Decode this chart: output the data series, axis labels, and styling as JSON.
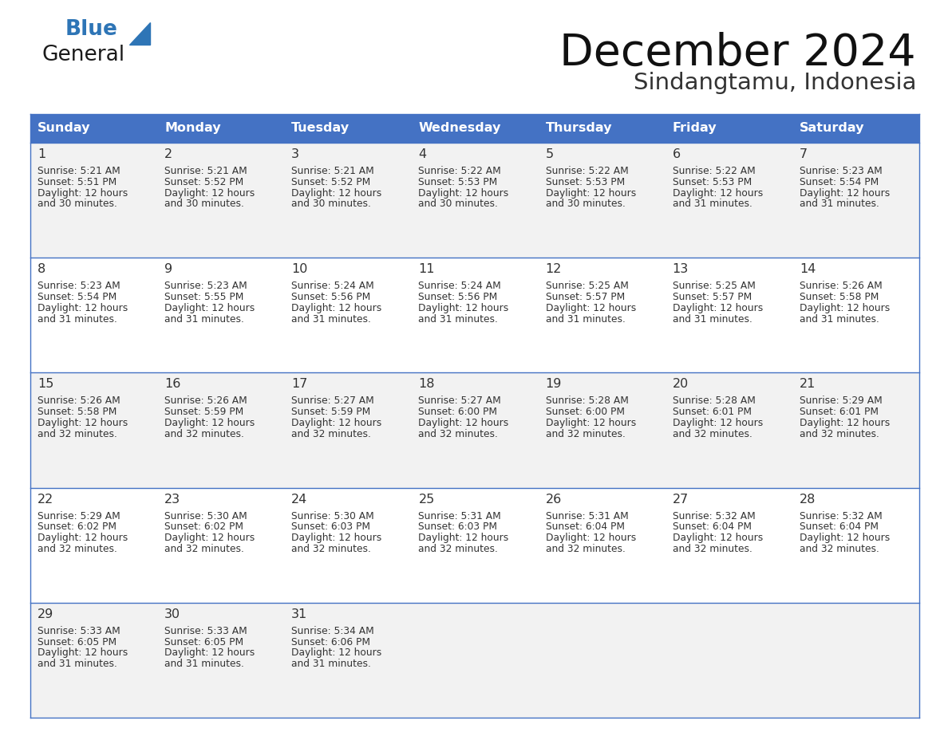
{
  "title": "December 2024",
  "subtitle": "Sindangtamu, Indonesia",
  "header_color": "#4472C4",
  "header_text_color": "#FFFFFF",
  "cell_bg_white": "#FFFFFF",
  "cell_bg_gray": "#F2F2F2",
  "border_color": "#4472C4",
  "text_color": "#333333",
  "days_of_week": [
    "Sunday",
    "Monday",
    "Tuesday",
    "Wednesday",
    "Thursday",
    "Friday",
    "Saturday"
  ],
  "weeks": [
    [
      {
        "day": 1,
        "sunrise": "5:21 AM",
        "sunset": "5:51 PM",
        "daylight": "12 hours and 30 minutes"
      },
      {
        "day": 2,
        "sunrise": "5:21 AM",
        "sunset": "5:52 PM",
        "daylight": "12 hours and 30 minutes"
      },
      {
        "day": 3,
        "sunrise": "5:21 AM",
        "sunset": "5:52 PM",
        "daylight": "12 hours and 30 minutes"
      },
      {
        "day": 4,
        "sunrise": "5:22 AM",
        "sunset": "5:53 PM",
        "daylight": "12 hours and 30 minutes"
      },
      {
        "day": 5,
        "sunrise": "5:22 AM",
        "sunset": "5:53 PM",
        "daylight": "12 hours and 30 minutes"
      },
      {
        "day": 6,
        "sunrise": "5:22 AM",
        "sunset": "5:53 PM",
        "daylight": "12 hours and 31 minutes"
      },
      {
        "day": 7,
        "sunrise": "5:23 AM",
        "sunset": "5:54 PM",
        "daylight": "12 hours and 31 minutes"
      }
    ],
    [
      {
        "day": 8,
        "sunrise": "5:23 AM",
        "sunset": "5:54 PM",
        "daylight": "12 hours and 31 minutes"
      },
      {
        "day": 9,
        "sunrise": "5:23 AM",
        "sunset": "5:55 PM",
        "daylight": "12 hours and 31 minutes"
      },
      {
        "day": 10,
        "sunrise": "5:24 AM",
        "sunset": "5:56 PM",
        "daylight": "12 hours and 31 minutes"
      },
      {
        "day": 11,
        "sunrise": "5:24 AM",
        "sunset": "5:56 PM",
        "daylight": "12 hours and 31 minutes"
      },
      {
        "day": 12,
        "sunrise": "5:25 AM",
        "sunset": "5:57 PM",
        "daylight": "12 hours and 31 minutes"
      },
      {
        "day": 13,
        "sunrise": "5:25 AM",
        "sunset": "5:57 PM",
        "daylight": "12 hours and 31 minutes"
      },
      {
        "day": 14,
        "sunrise": "5:26 AM",
        "sunset": "5:58 PM",
        "daylight": "12 hours and 31 minutes"
      }
    ],
    [
      {
        "day": 15,
        "sunrise": "5:26 AM",
        "sunset": "5:58 PM",
        "daylight": "12 hours and 32 minutes"
      },
      {
        "day": 16,
        "sunrise": "5:26 AM",
        "sunset": "5:59 PM",
        "daylight": "12 hours and 32 minutes"
      },
      {
        "day": 17,
        "sunrise": "5:27 AM",
        "sunset": "5:59 PM",
        "daylight": "12 hours and 32 minutes"
      },
      {
        "day": 18,
        "sunrise": "5:27 AM",
        "sunset": "6:00 PM",
        "daylight": "12 hours and 32 minutes"
      },
      {
        "day": 19,
        "sunrise": "5:28 AM",
        "sunset": "6:00 PM",
        "daylight": "12 hours and 32 minutes"
      },
      {
        "day": 20,
        "sunrise": "5:28 AM",
        "sunset": "6:01 PM",
        "daylight": "12 hours and 32 minutes"
      },
      {
        "day": 21,
        "sunrise": "5:29 AM",
        "sunset": "6:01 PM",
        "daylight": "12 hours and 32 minutes"
      }
    ],
    [
      {
        "day": 22,
        "sunrise": "5:29 AM",
        "sunset": "6:02 PM",
        "daylight": "12 hours and 32 minutes"
      },
      {
        "day": 23,
        "sunrise": "5:30 AM",
        "sunset": "6:02 PM",
        "daylight": "12 hours and 32 minutes"
      },
      {
        "day": 24,
        "sunrise": "5:30 AM",
        "sunset": "6:03 PM",
        "daylight": "12 hours and 32 minutes"
      },
      {
        "day": 25,
        "sunrise": "5:31 AM",
        "sunset": "6:03 PM",
        "daylight": "12 hours and 32 minutes"
      },
      {
        "day": 26,
        "sunrise": "5:31 AM",
        "sunset": "6:04 PM",
        "daylight": "12 hours and 32 minutes"
      },
      {
        "day": 27,
        "sunrise": "5:32 AM",
        "sunset": "6:04 PM",
        "daylight": "12 hours and 32 minutes"
      },
      {
        "day": 28,
        "sunrise": "5:32 AM",
        "sunset": "6:04 PM",
        "daylight": "12 hours and 32 minutes"
      }
    ],
    [
      {
        "day": 29,
        "sunrise": "5:33 AM",
        "sunset": "6:05 PM",
        "daylight": "12 hours and 31 minutes"
      },
      {
        "day": 30,
        "sunrise": "5:33 AM",
        "sunset": "6:05 PM",
        "daylight": "12 hours and 31 minutes"
      },
      {
        "day": 31,
        "sunrise": "5:34 AM",
        "sunset": "6:06 PM",
        "daylight": "12 hours and 31 minutes"
      },
      null,
      null,
      null,
      null
    ]
  ],
  "logo_general_color": "#1a1a1a",
  "logo_blue_color": "#2E75B6",
  "triangle_color": "#2E75B6"
}
